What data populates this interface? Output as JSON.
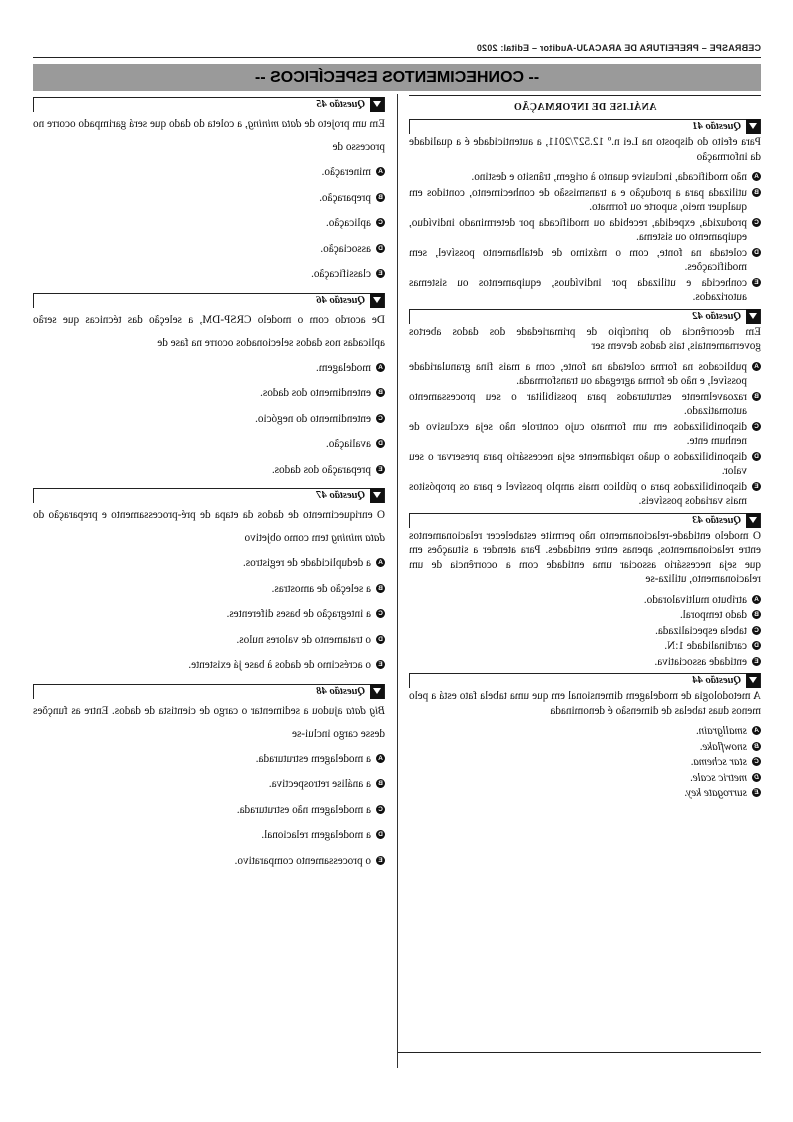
{
  "running_header": "CEBRASPE – PREFEITURA DE ARACAJU-Auditor – Edital: 2020",
  "banner": "-- CONHECIMENTOS ESPECÍFICOS --",
  "section_title": "ANÁLISE DE INFORMAÇÃO",
  "questions": {
    "q41": {
      "label": "Questão 41",
      "text": "Para efeito do disposto na Lei n.º 12.527/2011, a autenticidade é a qualidade da informação",
      "options": [
        {
          "letter": "A",
          "text": "não modificada, inclusive quanto à origem, trânsito e destino."
        },
        {
          "letter": "B",
          "text": "utilizada para a produção e a transmissão de conhecimento, contidos em qualquer meio, suporte ou formato."
        },
        {
          "letter": "C",
          "text": "produzida, expedida, recebida ou modificada por determinado indivíduo, equipamento ou sistema."
        },
        {
          "letter": "D",
          "text": "coletada na fonte, com o máximo de detalhamento possível, sem modificações."
        },
        {
          "letter": "E",
          "text": "conhecida e utilizada por indivíduos, equipamentos ou sistemas autorizados."
        }
      ]
    },
    "q42": {
      "label": "Questão 42",
      "text": "Em decorrência do princípio de primariedade dos dados abertos governamentais, tais dados devem ser",
      "options": [
        {
          "letter": "A",
          "text": "publicados na forma coletada na fonte, com a mais fina granularidade possível, e não de forma agregada ou transformada."
        },
        {
          "letter": "B",
          "text": "razoavelmente estruturados para possibilitar o seu processamento automatizado."
        },
        {
          "letter": "C",
          "text": "disponibilizados em um formato cujo controle não seja exclusivo de nenhum ente."
        },
        {
          "letter": "D",
          "text": "disponibilizados o quão rapidamente seja necessário para preservar o seu valor."
        },
        {
          "letter": "E",
          "text": "disponibilizados para o público mais amplo possível e para os propósitos mais variados possíveis."
        }
      ]
    },
    "q43": {
      "label": "Questão 43",
      "text": "O modelo entidade-relacionamento não permite estabelecer relacionamentos entre relacionamentos, apenas entre entidades. Para atender a situações em que seja necessário associar uma entidade com a ocorrência de um relacionamento, utiliza-se",
      "options": [
        {
          "letter": "A",
          "text": "atributo multivalorado."
        },
        {
          "letter": "B",
          "text": "dado temporal."
        },
        {
          "letter": "C",
          "text": "tabela especializada."
        },
        {
          "letter": "D",
          "text": "cardinalidade 1:N."
        },
        {
          "letter": "E",
          "text": "entidade associativa."
        }
      ]
    },
    "q44": {
      "label": "Questão 44",
      "text": "A metodologia de modelagem dimensional em que uma tabela fato está a pelo menos duas tabelas de dimensão é denominada",
      "options": [
        {
          "letter": "A",
          "text": "smallgrain."
        },
        {
          "letter": "B",
          "text": "snowflake."
        },
        {
          "letter": "C",
          "text": "star schema."
        },
        {
          "letter": "D",
          "text": "metric scale."
        },
        {
          "letter": "E",
          "text": "surrogate key."
        }
      ]
    },
    "q45": {
      "label": "Questão 45",
      "text_before": "Em um projeto de ",
      "text_italic": "data mining",
      "text_after": ", a coleta do dado que será garimpado ocorre no processo de",
      "options": [
        {
          "letter": "A",
          "text": "mineração."
        },
        {
          "letter": "B",
          "text": "preparação."
        },
        {
          "letter": "C",
          "text": "aplicação."
        },
        {
          "letter": "D",
          "text": "associação."
        },
        {
          "letter": "E",
          "text": "classificação."
        }
      ]
    },
    "q46": {
      "label": "Questão 46",
      "text": "De acordo com o modelo CRSP-DM, a seleção das técnicas que serão aplicadas nos dados selecionados ocorre na fase de",
      "options": [
        {
          "letter": "A",
          "text": "modelagem."
        },
        {
          "letter": "B",
          "text": "entendimento dos dados."
        },
        {
          "letter": "C",
          "text": "entendimento do negócio."
        },
        {
          "letter": "D",
          "text": "avaliação."
        },
        {
          "letter": "E",
          "text": "preparação dos dados."
        }
      ]
    },
    "q47": {
      "label": "Questão 47",
      "text_before": "O enriquecimento de dados da etapa de pré-processamento e preparação do ",
      "text_italic": "data mining",
      "text_after": " tem como objetivo",
      "options": [
        {
          "letter": "A",
          "text": "a deduplicidade de registros."
        },
        {
          "letter": "B",
          "text": "a seleção de amostras."
        },
        {
          "letter": "C",
          "text": "a integração de bases diferentes."
        },
        {
          "letter": "D",
          "text": "o tratamento de valores nulos."
        },
        {
          "letter": "E",
          "text": "o acréscimo de dados à base já existente."
        }
      ]
    },
    "q48": {
      "label": "Questão 48",
      "text_italic": "Big data",
      "text_after": " ajudou a sedimentar o cargo de cientista de dados. Entre as funções desse cargo inclui-se",
      "options": [
        {
          "letter": "A",
          "text": "a modelagem estruturada."
        },
        {
          "letter": "B",
          "text": "a análise retrospectiva."
        },
        {
          "letter": "C",
          "text": "a modelagem não estruturada."
        },
        {
          "letter": "D",
          "text": "a modelagem relacional."
        },
        {
          "letter": "E",
          "text": "o processamento comparativo."
        }
      ]
    }
  }
}
